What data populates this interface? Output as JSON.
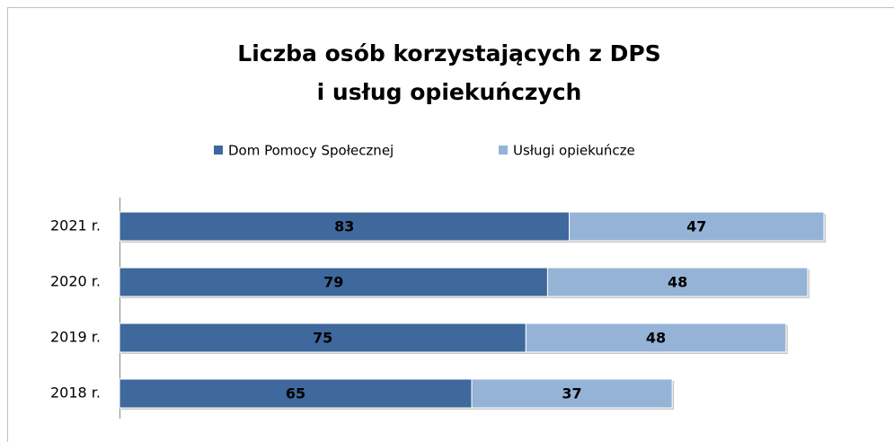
{
  "chart_data": {
    "type": "stacked-bar-horizontal",
    "title": [
      "Liczba osób korzystających z DPS",
      "i usług opiekuńczych"
    ],
    "categories": [
      "2021 r.",
      "2020 r.",
      "2019 r.",
      "2018 r."
    ],
    "series": [
      {
        "name": "Dom Pomocy Społecznej",
        "color": "#3f689c",
        "values": [
          83,
          79,
          75,
          65
        ]
      },
      {
        "name": "Usługi opiekuńcze",
        "color": "#95b3d7",
        "values": [
          47,
          48,
          48,
          37
        ]
      }
    ],
    "legend": "top"
  }
}
